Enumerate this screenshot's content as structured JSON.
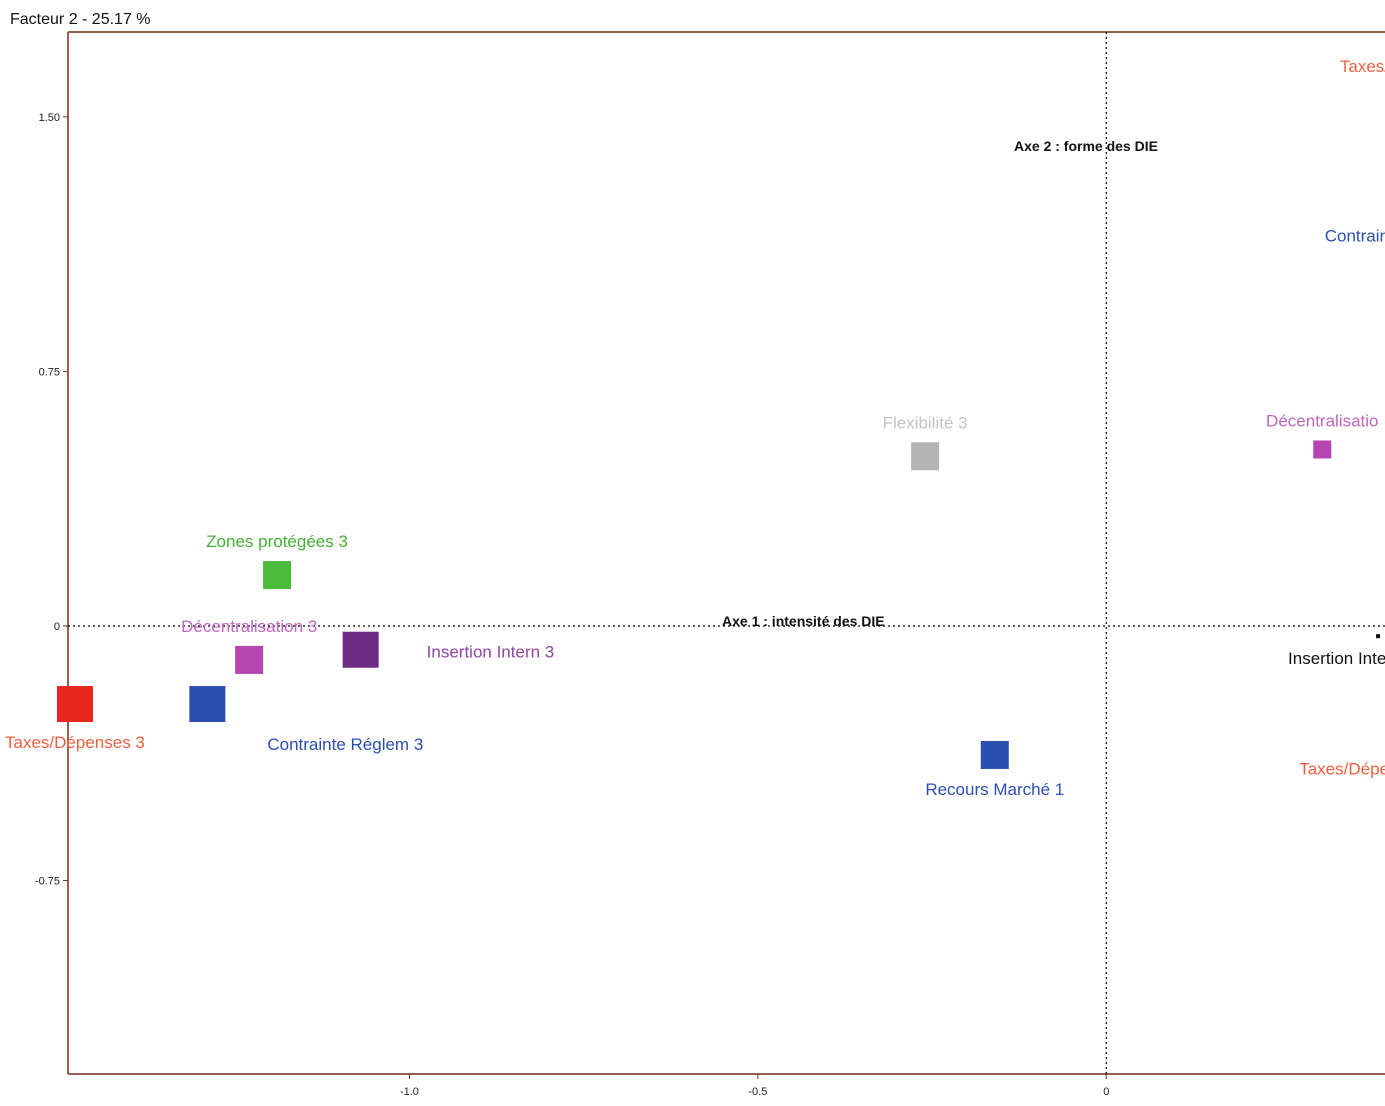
{
  "chart_data": {
    "type": "scatter",
    "title": "Facteur 2  -  25.17 %",
    "x_axis_name": "Axe 1 : intensité des DIE",
    "y_axis_name": "Axe 2 : forme des DIE",
    "xlim": [
      -1.49,
      0.4
    ],
    "ylim": [
      -1.32,
      1.75
    ],
    "x_ticks": [
      {
        "value": -1.0,
        "label": "-1.0"
      },
      {
        "value": -0.5,
        "label": "-0.5"
      },
      {
        "value": 0,
        "label": "0"
      }
    ],
    "y_ticks": [
      {
        "value": 1.5,
        "label": "1.50"
      },
      {
        "value": 0.75,
        "label": "0.75"
      },
      {
        "value": 0,
        "label": "0"
      },
      {
        "value": -0.75,
        "label": "-0.75"
      }
    ],
    "grid": false,
    "reference_lines": [
      "x = 0 (dotted)",
      "y = 0 (dotted)"
    ],
    "points": [
      {
        "label": "Taxes/Dépenses 3",
        "x": -1.48,
        "y": -0.23,
        "size": "large",
        "color": "#e8251f",
        "label_color": "#f06040",
        "label_anchor": "below"
      },
      {
        "label": "Contrainte Réglem 3",
        "x": -1.29,
        "y": -0.23,
        "size": "large",
        "color": "#2b4fb0",
        "label_color": "#2b4fb0",
        "label_anchor": "below-right"
      },
      {
        "label": "Décentralisation 3",
        "x": -1.23,
        "y": -0.1,
        "size": "medium",
        "color": "#b545b0",
        "label_color": "#c065c0",
        "label_anchor": "above"
      },
      {
        "label": "Insertion Intern 3",
        "x": -1.07,
        "y": -0.07,
        "size": "large",
        "color": "#6c2a82",
        "label_color": "#9045a0",
        "label_anchor": "right"
      },
      {
        "label": "Zones protégées 3",
        "x": -1.19,
        "y": 0.15,
        "size": "medium",
        "color": "#4cbb3c",
        "label_color": "#44b033",
        "label_anchor": "above"
      },
      {
        "label": "Flexibilité 3",
        "x": -0.26,
        "y": 0.5,
        "size": "medium",
        "color": "#b4b4b4",
        "label_color": "#c4c4c4",
        "label_anchor": "above"
      },
      {
        "label": "Recours Marché  1",
        "x": -0.16,
        "y": -0.38,
        "size": "medium",
        "color": "#2b4fb0",
        "label_color": "#2b4fb0",
        "label_anchor": "below"
      },
      {
        "label": "Décentralisatio",
        "x": 0.31,
        "y": 0.52,
        "size": "small",
        "color": "#b545b0",
        "label_color": "#c065c0",
        "label_anchor": "above"
      },
      {
        "label": "Insertion Inter",
        "x": 0.39,
        "y": -0.03,
        "size": "dot",
        "color": "#111111",
        "label_color": "#111111",
        "label_anchor": "below-left"
      },
      {
        "label": "Taxes/",
        "x": null,
        "y": 1.65,
        "size": "none",
        "color": "#f06040",
        "label_color": "#f06040",
        "label_anchor": "edge"
      },
      {
        "label": "Contrain",
        "x": null,
        "y": 1.15,
        "size": "none",
        "color": "#2b4fb0",
        "label_color": "#2b4fb0",
        "label_anchor": "edge"
      },
      {
        "label": "Taxes/Dépe",
        "x": null,
        "y": -0.42,
        "size": "none",
        "color": "#f06040",
        "label_color": "#f06040",
        "label_anchor": "edge"
      }
    ]
  },
  "colors": {
    "frame": "#7a2c18",
    "reference_line": "#000000"
  }
}
